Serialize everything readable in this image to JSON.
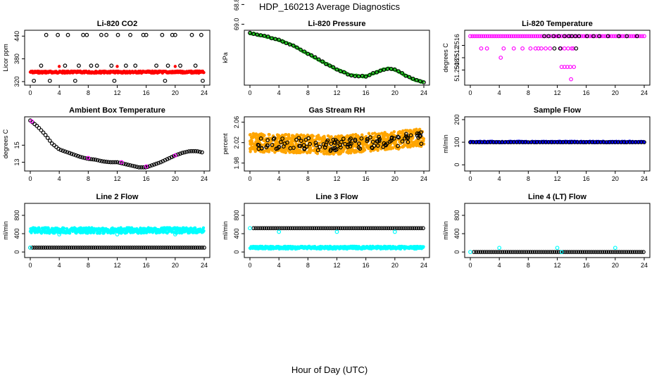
{
  "figure": {
    "title": "HDP_160213  Average Diagnostics",
    "xlabel": "Hour of Day (UTC)",
    "colors": {
      "black": "#000000",
      "red": "#ff0000",
      "green": "#22cc22",
      "magenta": "#ff00ff",
      "orange": "#ffa500",
      "blue": "#0000ff",
      "cyan": "#00ffff"
    }
  },
  "chart_data": [
    {
      "type": "scatter",
      "title": "Li-820 CO2",
      "ylabel": "Licor ppm",
      "xlim": [
        0,
        24
      ],
      "ylim": [
        318,
        448
      ],
      "xticks": [
        "0",
        "4",
        "8",
        "12",
        "16",
        "20",
        "24"
      ],
      "yticks": [
        "320",
        "380",
        "440"
      ],
      "series": [
        {
          "color": "black",
          "style": "ring",
          "x": [
            2.2,
            3.8,
            5.2,
            7.3,
            7.8,
            9.8,
            10.5,
            12.1,
            13.8,
            15.6,
            16.0,
            18.2,
            19.6,
            20.0,
            22.3,
            23.6,
            1.5,
            4.8,
            6.7,
            8.4,
            9.2,
            11.2,
            13.2,
            14.5,
            17.4,
            19.0,
            20.7,
            22.8,
            0.5,
            2.7,
            6.2,
            11.6,
            18.6,
            23.8
          ],
          "y": [
            443,
            443,
            443,
            443,
            443,
            443,
            443,
            443,
            443,
            443,
            443,
            443,
            443,
            443,
            443,
            443,
            362,
            362,
            362,
            362,
            362,
            362,
            362,
            362,
            362,
            362,
            362,
            362,
            322,
            322,
            322,
            322,
            322,
            322
          ]
        },
        {
          "color": "red",
          "style": "band",
          "y": 345,
          "x_range": [
            0,
            24
          ],
          "jitter": 3
        },
        {
          "color": "red",
          "style": "dot",
          "x": [
            4.0,
            12.0,
            20.0
          ],
          "y": [
            360,
            360,
            360
          ]
        }
      ]
    },
    {
      "type": "scatter",
      "title": "Li-820 Pressure",
      "ylabel": "kPa",
      "xlim": [
        0,
        24
      ],
      "ylim": [
        69.59,
        69.09
      ],
      "xticks": [
        "0",
        "4",
        "8",
        "12",
        "16",
        "20",
        "24"
      ],
      "yticks": [
        "69.0",
        "68.8",
        "68.6"
      ],
      "series": [
        {
          "color": "green",
          "style": "curve",
          "x": [
            0,
            2,
            4,
            6,
            8,
            10,
            12,
            14,
            16,
            17,
            18,
            19,
            20,
            21,
            22,
            23,
            24
          ],
          "y": [
            69.09,
            69.12,
            69.16,
            69.22,
            69.3,
            69.38,
            69.46,
            69.52,
            69.53,
            69.5,
            69.47,
            69.45,
            69.46,
            69.5,
            69.54,
            69.57,
            69.59
          ]
        },
        {
          "color": "black",
          "style": "ring-sample",
          "step": 0.5,
          "offset": 0.01
        }
      ]
    },
    {
      "type": "scatter",
      "title": "Li-820 Temperature",
      "ylabel": "degrees C",
      "xlim": [
        0,
        24
      ],
      "ylim": [
        51.2504,
        51.252
      ],
      "xticks": [
        "0",
        "4",
        "8",
        "12",
        "16",
        "20",
        "24"
      ],
      "yticks": [
        "51.2508",
        "51.2512",
        "51.2516"
      ],
      "series": [
        {
          "color": "magenta",
          "style": "ring",
          "x_range": [
            0,
            24
          ],
          "y": 51.2519,
          "step": 0.3
        },
        {
          "color": "black",
          "style": "ring",
          "x": [
            10.2,
            10.8,
            11.5,
            12.2,
            13.0,
            13.6,
            14.0,
            14.5,
            15.0,
            16.1,
            17.0,
            17.8,
            19.0,
            20.5,
            21.6,
            23.0
          ],
          "y": [
            51.2519,
            51.2519,
            51.2519,
            51.2519,
            51.2519,
            51.2519,
            51.2519,
            51.2519,
            51.2519,
            51.2519,
            51.2519,
            51.2519,
            51.2519,
            51.2519,
            51.2519,
            51.2519
          ]
        },
        {
          "color": "magenta",
          "style": "ring",
          "x": [
            1.5,
            2.3,
            4.6,
            6.0,
            7.2,
            8.3,
            9.0,
            9.4,
            9.8,
            10.4,
            11.0,
            12.5,
            13.0,
            13.5,
            14.0,
            14.2,
            4.2,
            12.6,
            13.0,
            13.4,
            13.8,
            14.3,
            13.9
          ],
          "y": [
            51.2515,
            51.2515,
            51.2515,
            51.2515,
            51.2515,
            51.2515,
            51.2515,
            51.2515,
            51.2515,
            51.2515,
            51.2515,
            51.2515,
            51.2515,
            51.2515,
            51.2515,
            51.2515,
            51.2512,
            51.2509,
            51.2509,
            51.2509,
            51.2509,
            51.2509,
            51.2505
          ]
        },
        {
          "color": "black",
          "style": "ring",
          "x": [
            11.6,
            12.4,
            14.6
          ],
          "y": [
            51.2515,
            51.2515,
            51.2515
          ]
        }
      ]
    },
    {
      "type": "scatter",
      "title": "Ambient Box Temperature",
      "ylabel": "degrees C",
      "xlim": [
        0,
        24
      ],
      "ylim": [
        12.3,
        18.0
      ],
      "xticks": [
        "0",
        "4",
        "8",
        "12",
        "16",
        "20",
        "24"
      ],
      "yticks": [
        "13",
        "15"
      ],
      "series": [
        {
          "color": "black",
          "style": "curve-rings",
          "x": [
            0,
            1,
            2,
            3,
            4,
            5,
            6,
            7,
            8,
            9,
            10,
            11,
            12,
            13,
            14,
            15,
            16,
            17,
            18,
            19,
            20,
            21,
            22,
            23,
            24
          ],
          "y": [
            17.9,
            17.2,
            16.3,
            15.2,
            14.5,
            14.2,
            13.9,
            13.6,
            13.4,
            13.3,
            13.1,
            13.0,
            13.0,
            12.8,
            12.6,
            12.4,
            12.4,
            12.7,
            13.0,
            13.4,
            13.8,
            14.1,
            14.3,
            14.3,
            14.1
          ],
          "step": 0.3
        },
        {
          "color": "magenta",
          "style": "ring",
          "x": [
            0.2,
            8.0,
            12.6,
            16.0,
            20.0
          ],
          "y": [
            17.8,
            13.5,
            13.0,
            12.5,
            13.8
          ]
        }
      ]
    },
    {
      "type": "scatter",
      "title": "Gas Stream RH",
      "ylabel": "percent",
      "xlim": [
        0,
        24
      ],
      "ylim": [
        1.97,
        2.065
      ],
      "xticks": [
        "0",
        "4",
        "8",
        "12",
        "16",
        "20",
        "24"
      ],
      "yticks": [
        "1.98",
        "2.02",
        "2.06"
      ],
      "series": [
        {
          "color": "orange",
          "style": "noise-band",
          "count": 900,
          "x_range": [
            0,
            24
          ],
          "center": [
            2.02,
            2.018,
            2.015,
            2.022,
            2.03
          ],
          "spread": 0.018
        },
        {
          "color": "black",
          "style": "noise-rings",
          "count": 120,
          "x_range": [
            0,
            24
          ],
          "center": [
            2.02,
            2.018,
            2.015,
            2.022,
            2.03
          ],
          "spread": 0.012
        }
      ]
    },
    {
      "type": "scatter",
      "title": "Sample Flow",
      "ylabel": "ml/min",
      "xlim": [
        0,
        24
      ],
      "ylim": [
        -15,
        200
      ],
      "xticks": [
        "0",
        "4",
        "8",
        "12",
        "16",
        "20",
        "24"
      ],
      "yticks": [
        "0",
        "100",
        "200"
      ],
      "series": [
        {
          "color": "blue",
          "style": "band",
          "y": 101,
          "x_range": [
            0,
            24
          ],
          "jitter": 2
        },
        {
          "color": "black",
          "style": "ring",
          "x_range": [
            0,
            24
          ],
          "y": 100,
          "step": 0.4
        }
      ]
    },
    {
      "type": "scatter",
      "title": "Line 2 Flow",
      "ylabel": "ml/min",
      "xlim": [
        0,
        24
      ],
      "ylim": [
        -60,
        1000
      ],
      "xticks": [
        "0",
        "4",
        "8",
        "12",
        "16",
        "20",
        "24"
      ],
      "yticks": [
        "0",
        "400",
        "800"
      ],
      "series": [
        {
          "color": "cyan",
          "style": "band",
          "y": 470,
          "x_range": [
            0,
            24
          ],
          "jitter": 8
        },
        {
          "color": "black",
          "style": "ring",
          "x_range": [
            0,
            24
          ],
          "y": 95,
          "step": 0.3
        },
        {
          "color": "cyan",
          "style": "ring",
          "x": [
            4.0,
            12.0,
            20.0,
            0.0
          ],
          "y": [
            385,
            385,
            385,
            95
          ]
        }
      ]
    },
    {
      "type": "scatter",
      "title": "Line 3 Flow",
      "ylabel": "ml/min",
      "xlim": [
        0,
        24
      ],
      "ylim": [
        -60,
        1000
      ],
      "xticks": [
        "0",
        "4",
        "8",
        "12",
        "16",
        "20",
        "24"
      ],
      "yticks": [
        "0",
        "400",
        "800"
      ],
      "series": [
        {
          "color": "cyan",
          "style": "band",
          "y": 95,
          "x_range": [
            0,
            24
          ],
          "jitter": 4
        },
        {
          "color": "black",
          "style": "ring",
          "x_range": [
            0.5,
            24
          ],
          "y": 520,
          "step": 0.3
        },
        {
          "color": "cyan",
          "style": "ring",
          "x": [
            0.0,
            4.0,
            12.0,
            20.0
          ],
          "y": [
            520,
            440,
            440,
            440
          ]
        }
      ]
    },
    {
      "type": "scatter",
      "title": "Line 4 (LT) Flow",
      "ylabel": "ml/min",
      "xlim": [
        0,
        24
      ],
      "ylim": [
        -60,
        1000
      ],
      "xticks": [
        "0",
        "4",
        "8",
        "12",
        "16",
        "20",
        "24"
      ],
      "yticks": [
        "0",
        "400",
        "800"
      ],
      "series": [
        {
          "color": "black",
          "style": "ring",
          "x_range": [
            0.5,
            24
          ],
          "y": 0,
          "step": 0.3
        },
        {
          "color": "cyan",
          "style": "ring",
          "x": [
            0.0,
            4.0,
            12.0,
            20.0,
            12.6
          ],
          "y": [
            0,
            90,
            90,
            90,
            0
          ]
        }
      ]
    }
  ]
}
